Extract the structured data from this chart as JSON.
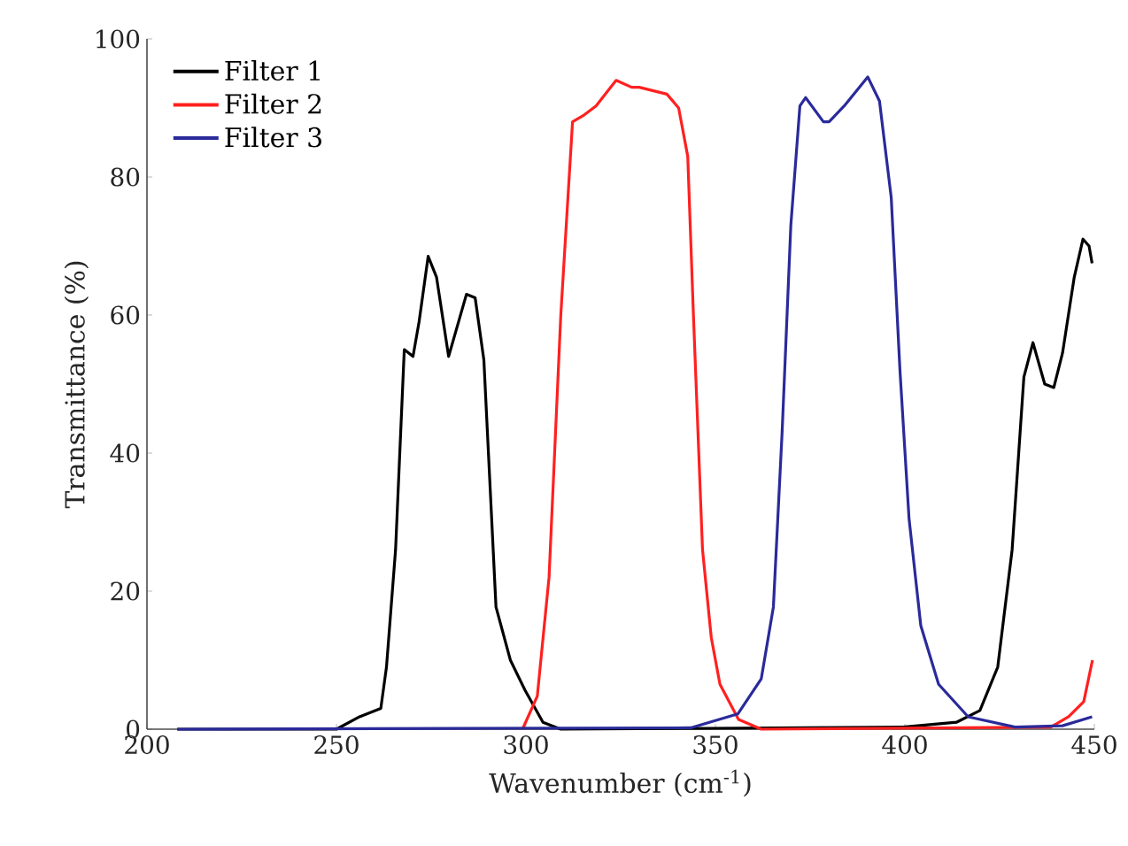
{
  "chart_data": {
    "type": "line",
    "xlabel": "Wavenumber (cm$^{-1}$)",
    "ylabel": "Transmittance (%)",
    "xlim": [
      200,
      450
    ],
    "ylim": [
      0,
      100
    ],
    "xticks": [
      200,
      250,
      300,
      350,
      400,
      450
    ],
    "yticks": [
      0,
      20,
      40,
      60,
      80,
      100
    ],
    "legend": "top left",
    "series": [
      {
        "name": "Filter 1",
        "color": "#000000",
        "x": [
          208,
          250,
          256.1,
          261.7,
          263.2,
          265.6,
          267.9,
          270.2,
          271.8,
          274.2,
          276.4,
          279.6,
          284.3,
          286.6,
          288.9,
          292.1,
          295.9,
          299.8,
          304.5,
          309.2,
          399.5,
          413.6,
          419.8,
          424.5,
          428.3,
          431.4,
          433.8,
          436.9,
          439.3,
          441.6,
          444.7,
          447,
          448.6,
          449.4
        ],
        "values": [
          0,
          0,
          1.8,
          3,
          9,
          26,
          55,
          54,
          59,
          68.5,
          65.5,
          54,
          63,
          62.5,
          53.5,
          17.7,
          10,
          5.6,
          1,
          0,
          0.3,
          1,
          2.7,
          9,
          26,
          51,
          56,
          50,
          49.5,
          54.5,
          65.5,
          71,
          70,
          67.5
        ]
      },
      {
        "name": "Filter 2",
        "color": "#ff2020",
        "x": [
          299.1,
          303,
          306.1,
          309.2,
          312.3,
          315.4,
          318.5,
          323.8,
          327.9,
          329.9,
          337.2,
          340.3,
          342.7,
          344.2,
          346.6,
          348.9,
          351.2,
          356.1,
          362.1,
          438.5,
          443.2,
          447.2,
          449.5
        ],
        "values": [
          0,
          4.8,
          22,
          60,
          88,
          89,
          90.3,
          94,
          93,
          93,
          92,
          90,
          83,
          60,
          26,
          13.3,
          6.5,
          1.4,
          0,
          0.3,
          1.8,
          4,
          10
        ]
      },
      {
        "name": "Filter 3",
        "color": "#2a2a9a",
        "x": [
          208,
          343.5,
          355.9,
          362.1,
          365.3,
          367.6,
          369.9,
          372.3,
          373.8,
          378.5,
          380,
          384,
          390.2,
          393.3,
          396.4,
          398.7,
          401.1,
          404.2,
          408.9,
          416.7,
          429.1,
          441.6,
          449.4
        ],
        "values": [
          0,
          0.2,
          2.2,
          7.3,
          17.7,
          43,
          73,
          90.3,
          91.5,
          88,
          88,
          90.3,
          94.5,
          91,
          77,
          52,
          30.5,
          15,
          6.5,
          1.8,
          0.3,
          0.5,
          1.8
        ]
      }
    ]
  }
}
